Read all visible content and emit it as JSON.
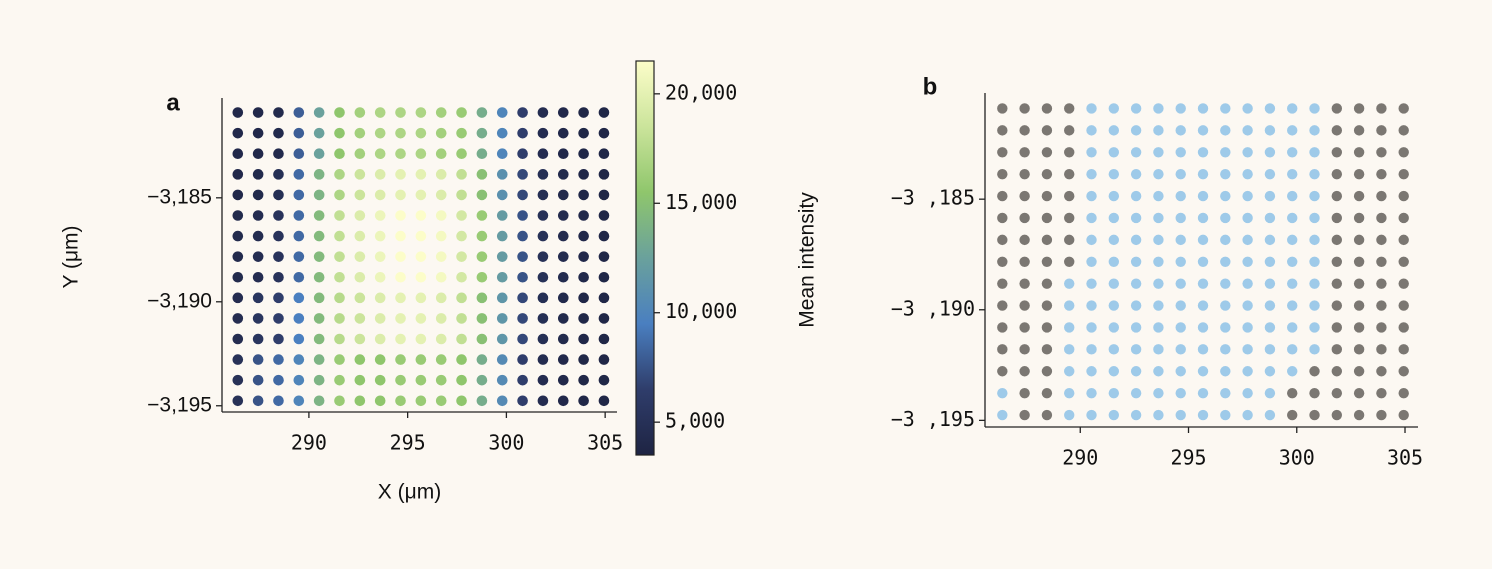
{
  "chart_data": [
    {
      "type": "scatter",
      "label": "a",
      "xlabel": "X (μm)",
      "ylabel": "Y (μm)",
      "x": [
        286.4,
        287.43,
        288.46,
        289.49,
        290.52,
        291.55,
        292.58,
        293.61,
        294.64,
        295.67,
        296.7,
        297.73,
        298.76,
        299.79,
        300.82,
        301.85,
        302.88,
        303.91,
        304.94
      ],
      "y": [
        -3180.9,
        -3181.89,
        -3182.88,
        -3183.87,
        -3184.86,
        -3185.85,
        -3186.84,
        -3187.83,
        -3188.82,
        -3189.81,
        -3190.8,
        -3191.79,
        -3192.78,
        -3193.77,
        -3194.76
      ],
      "values": [
        [
          4000,
          4000,
          4200,
          8000,
          12500,
          15500,
          16500,
          17000,
          17000,
          17000,
          16500,
          16000,
          13500,
          10000,
          6500,
          4500,
          4000,
          3800,
          3800
        ],
        [
          4000,
          4000,
          4200,
          8000,
          12500,
          15500,
          16500,
          17000,
          17000,
          17000,
          16500,
          16000,
          13500,
          10000,
          6500,
          4500,
          4000,
          3800,
          3800
        ],
        [
          4000,
          4000,
          4200,
          8000,
          12500,
          15500,
          16500,
          17000,
          17000,
          17000,
          16500,
          16000,
          13500,
          10000,
          6500,
          4500,
          4000,
          3800,
          3800
        ],
        [
          4000,
          4200,
          4800,
          8500,
          14000,
          17000,
          18500,
          19500,
          20000,
          20000,
          19500,
          18000,
          15000,
          11000,
          7000,
          4800,
          4200,
          3900,
          3800
        ],
        [
          4000,
          4200,
          4800,
          8500,
          14000,
          17000,
          18500,
          19500,
          20000,
          20000,
          19500,
          18000,
          15000,
          11000,
          7000,
          4800,
          4200,
          3900,
          3800
        ],
        [
          4200,
          4500,
          5200,
          8500,
          14500,
          18000,
          19500,
          20500,
          21500,
          21500,
          21000,
          19000,
          16000,
          12000,
          7500,
          5000,
          4300,
          4000,
          3800
        ],
        [
          4200,
          4500,
          5200,
          8500,
          14500,
          18000,
          19500,
          20500,
          21500,
          21500,
          21000,
          19000,
          16000,
          12000,
          7500,
          5000,
          4300,
          4000,
          3800
        ],
        [
          4200,
          4500,
          5200,
          8500,
          14500,
          18000,
          19500,
          20500,
          21500,
          21500,
          21000,
          19000,
          16000,
          12000,
          7500,
          5000,
          4300,
          4000,
          3800
        ],
        [
          4200,
          4500,
          5200,
          8500,
          14500,
          18000,
          19500,
          20500,
          21500,
          21500,
          21000,
          19000,
          16000,
          12000,
          7500,
          5000,
          4300,
          4000,
          3800
        ],
        [
          4500,
          5500,
          6500,
          9500,
          14500,
          17500,
          18500,
          19500,
          20000,
          20000,
          19500,
          18000,
          15000,
          11500,
          7000,
          4800,
          4200,
          3900,
          3800
        ],
        [
          4500,
          5500,
          6500,
          9500,
          14500,
          17500,
          18500,
          19500,
          20000,
          20000,
          19500,
          18000,
          15000,
          11500,
          7000,
          4800,
          4200,
          3900,
          3800
        ],
        [
          4500,
          5500,
          6500,
          9500,
          14500,
          17500,
          18500,
          19500,
          20000,
          20000,
          19500,
          18000,
          15000,
          11500,
          7000,
          4800,
          4200,
          3900,
          3800
        ],
        [
          5000,
          7500,
          8500,
          10000,
          14000,
          16000,
          15500,
          15500,
          16000,
          16000,
          16000,
          15500,
          13500,
          10500,
          6500,
          4500,
          4000,
          3800,
          3800
        ],
        [
          5000,
          7500,
          8500,
          10000,
          14000,
          16000,
          15500,
          15500,
          16000,
          16000,
          16000,
          15500,
          13500,
          10500,
          6500,
          4500,
          4000,
          3800,
          3800
        ],
        [
          5000,
          7500,
          8500,
          10000,
          14000,
          16000,
          15500,
          15500,
          16000,
          16000,
          16000,
          15500,
          13500,
          10500,
          6500,
          4500,
          4000,
          3800,
          3800
        ]
      ],
      "xlim": [
        285.6,
        305.6
      ],
      "ylim": [
        -3195.3,
        -3180.2
      ],
      "xticks": [
        290,
        295,
        300,
        305
      ],
      "yticks": [
        {
          "value": -3185,
          "label": "−3,185"
        },
        {
          "value": -3190,
          "label": "−3,190"
        },
        {
          "value": -3195,
          "label": "−3,195"
        }
      ],
      "colorbar": {
        "label": "Mean intensity",
        "lim": [
          3500,
          21500
        ],
        "ticks": [
          {
            "value": 5000,
            "label": "5,000"
          },
          {
            "value": 10000,
            "label": "10,000"
          },
          {
            "value": 15000,
            "label": "15,000"
          },
          {
            "value": 20000,
            "label": "20,000"
          }
        ],
        "colors": [
          "#1e2443",
          "#2f3d6b",
          "#4a7fc0",
          "#6aa19c",
          "#8fc66c",
          "#cbe49b",
          "#fcfdc9"
        ]
      }
    },
    {
      "type": "scatter",
      "label": "b",
      "x": [
        286.4,
        287.43,
        288.46,
        289.49,
        290.52,
        291.55,
        292.58,
        293.61,
        294.64,
        295.67,
        296.7,
        297.73,
        298.76,
        299.79,
        300.82,
        301.85,
        302.88,
        303.91,
        304.94
      ],
      "y": [
        -3180.9,
        -3181.89,
        -3182.88,
        -3183.87,
        -3184.86,
        -3185.85,
        -3186.84,
        -3187.83,
        -3188.82,
        -3189.81,
        -3190.8,
        -3191.79,
        -3192.78,
        -3193.77,
        -3194.76
      ],
      "values": [
        [
          0,
          0,
          0,
          0,
          1,
          1,
          1,
          1,
          1,
          1,
          1,
          1,
          1,
          1,
          1,
          0,
          0,
          0,
          0
        ],
        [
          0,
          0,
          0,
          0,
          1,
          1,
          1,
          1,
          1,
          1,
          1,
          1,
          1,
          1,
          1,
          0,
          0,
          0,
          0
        ],
        [
          0,
          0,
          0,
          0,
          1,
          1,
          1,
          1,
          1,
          1,
          1,
          1,
          1,
          1,
          1,
          0,
          0,
          0,
          0
        ],
        [
          0,
          0,
          0,
          0,
          1,
          1,
          1,
          1,
          1,
          1,
          1,
          1,
          1,
          1,
          1,
          0,
          0,
          0,
          0
        ],
        [
          0,
          0,
          0,
          0,
          1,
          1,
          1,
          1,
          1,
          1,
          1,
          1,
          1,
          1,
          1,
          0,
          0,
          0,
          0
        ],
        [
          0,
          0,
          0,
          0,
          1,
          1,
          1,
          1,
          1,
          1,
          1,
          1,
          1,
          1,
          1,
          0,
          0,
          0,
          0
        ],
        [
          0,
          0,
          0,
          0,
          1,
          1,
          1,
          1,
          1,
          1,
          1,
          1,
          1,
          1,
          1,
          0,
          0,
          0,
          0
        ],
        [
          0,
          0,
          0,
          0,
          1,
          1,
          1,
          1,
          1,
          1,
          1,
          1,
          1,
          1,
          1,
          0,
          0,
          0,
          0
        ],
        [
          0,
          0,
          0,
          1,
          1,
          1,
          1,
          1,
          1,
          1,
          1,
          1,
          1,
          1,
          1,
          0,
          0,
          0,
          0
        ],
        [
          0,
          0,
          0,
          1,
          1,
          1,
          1,
          1,
          1,
          1,
          1,
          1,
          1,
          1,
          1,
          0,
          0,
          0,
          0
        ],
        [
          0,
          0,
          0,
          1,
          1,
          1,
          1,
          1,
          1,
          1,
          1,
          1,
          1,
          1,
          1,
          0,
          0,
          0,
          0
        ],
        [
          0,
          0,
          0,
          1,
          1,
          1,
          1,
          1,
          1,
          1,
          1,
          1,
          1,
          1,
          1,
          0,
          0,
          0,
          0
        ],
        [
          0,
          0,
          0,
          1,
          1,
          1,
          1,
          1,
          1,
          1,
          1,
          1,
          1,
          1,
          0,
          0,
          0,
          0,
          0
        ],
        [
          1,
          0,
          0,
          1,
          1,
          1,
          1,
          1,
          1,
          1,
          1,
          1,
          1,
          0,
          0,
          0,
          0,
          0,
          0
        ],
        [
          1,
          0,
          0,
          1,
          1,
          1,
          1,
          1,
          1,
          1,
          1,
          1,
          1,
          0,
          0,
          0,
          0,
          0,
          0
        ]
      ],
      "colors": [
        "#7b7772",
        "#9ecae9"
      ],
      "xlim": [
        285.6,
        305.6
      ],
      "ylim": [
        -3195.3,
        -3180.2
      ],
      "xticks": [
        290,
        295,
        300,
        305
      ],
      "yticks": [
        {
          "value": -3185,
          "label": "−3 ,185"
        },
        {
          "value": -3190,
          "label": "−3 ,190"
        },
        {
          "value": -3195,
          "label": "−3 ,195"
        }
      ]
    }
  ]
}
